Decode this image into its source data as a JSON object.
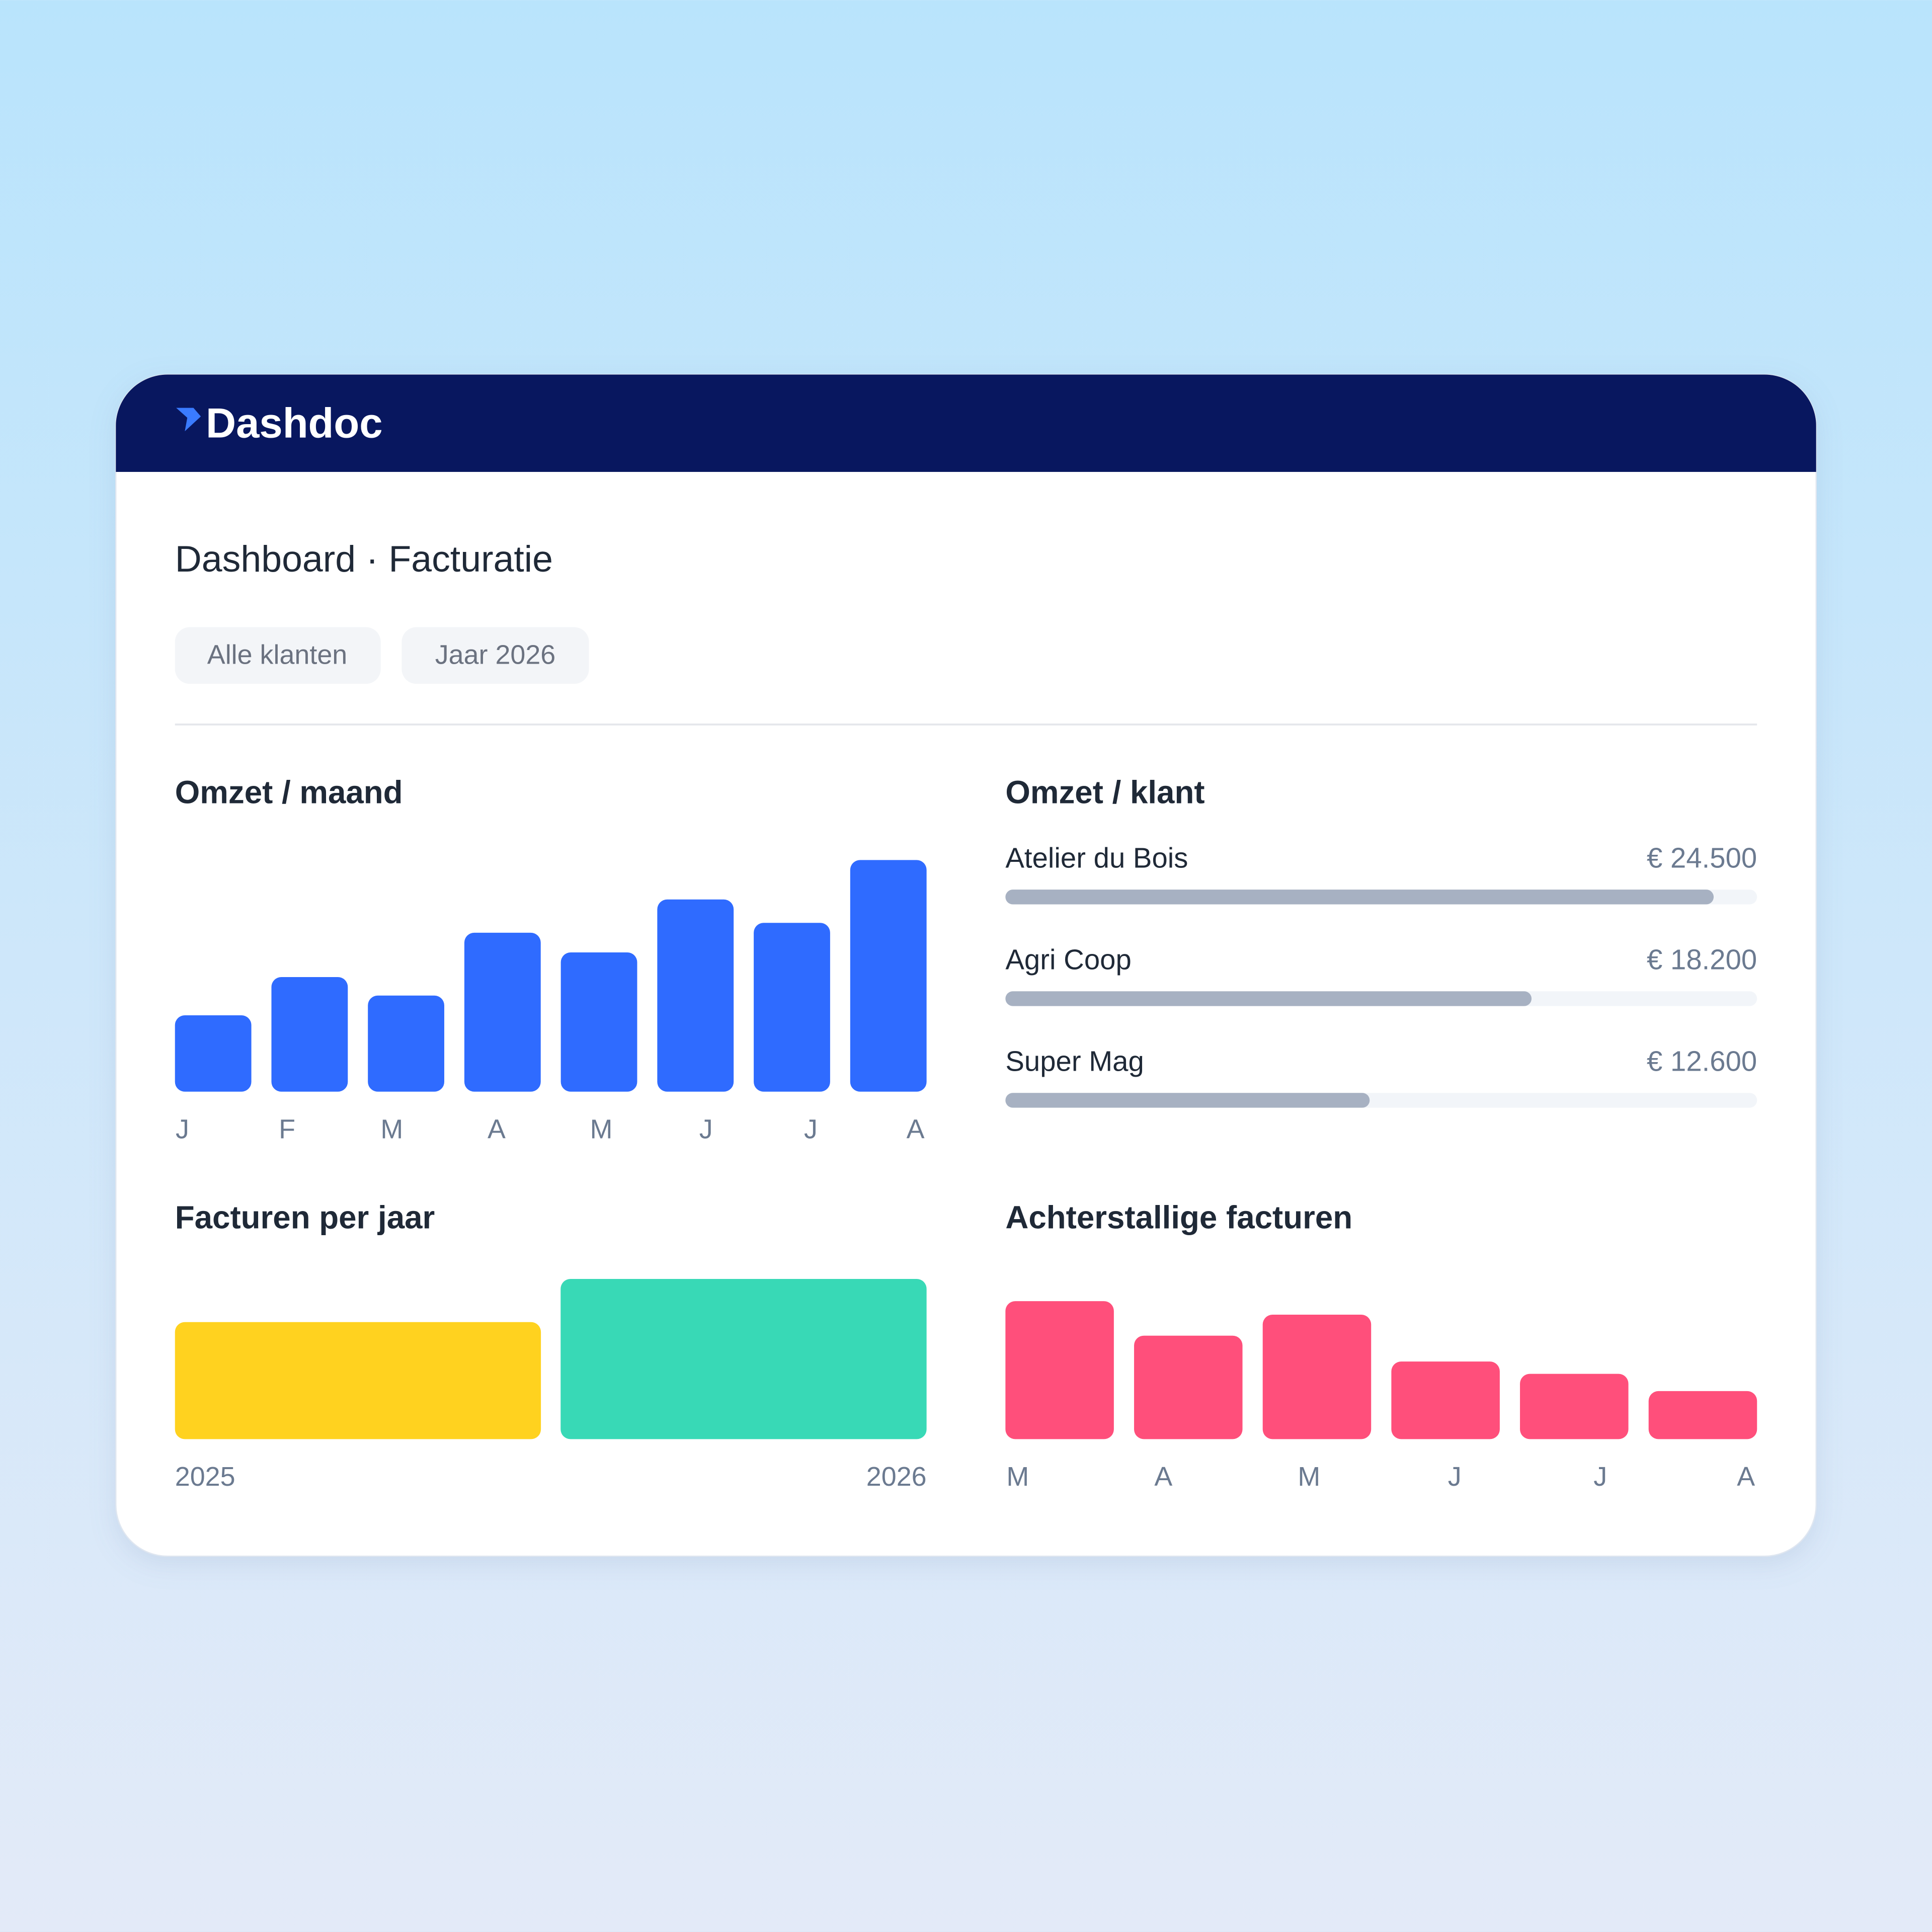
{
  "header": {
    "logo": "Dashdoc"
  },
  "title": "Dashboard · Facturatie",
  "filters": [
    "Alle klanten",
    "Jaar 2026"
  ],
  "chart_data": [
    {
      "type": "bar",
      "title": "Omzet / maand",
      "categories": [
        "J",
        "F",
        "M",
        "A",
        "M",
        "J",
        "J",
        "A"
      ],
      "values": [
        62,
        93,
        78,
        129,
        113,
        156,
        137,
        188
      ],
      "ylim": [
        0,
        188
      ],
      "color": "#2f6bff"
    },
    {
      "type": "hbar",
      "title": "Omzet / klant",
      "categories": [
        "Atelier du Bois",
        "Agri Coop",
        "Super Mag"
      ],
      "values": [
        24500,
        18200,
        12600
      ],
      "value_labels": [
        "€ 24.500",
        "€ 18.200",
        "€ 12.600"
      ],
      "xlim": [
        0,
        26000
      ],
      "color": "#a7b1c2"
    },
    {
      "type": "bar",
      "title": "Facturen per jaar",
      "categories": [
        "2025",
        "2026"
      ],
      "values": [
        95,
        130
      ],
      "ylim": [
        0,
        130
      ],
      "colors": [
        "#ffd21f",
        "#38d9b6"
      ]
    },
    {
      "type": "bar",
      "title": "Achterstallige facturen",
      "categories": [
        "M",
        "A",
        "M",
        "J",
        "J",
        "A"
      ],
      "values": [
        112,
        84,
        101,
        63,
        53,
        39
      ],
      "ylim": [
        0,
        112
      ],
      "color": "#ff4f7b"
    }
  ]
}
